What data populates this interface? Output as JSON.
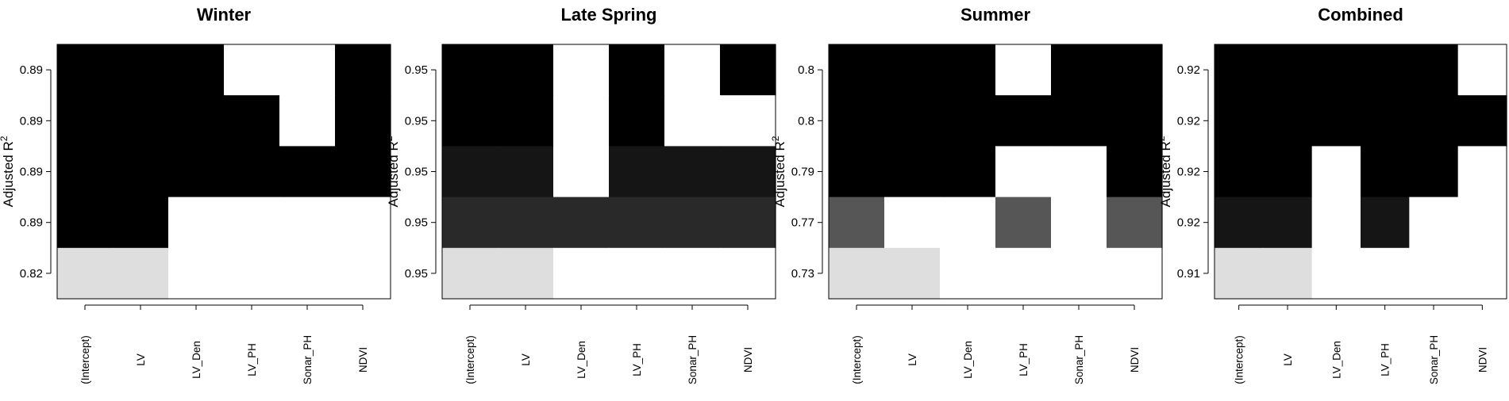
{
  "chart_data": [
    {
      "type": "heatmap",
      "title": "Winter",
      "ylabel": "Adjusted R",
      "ylabel_superscript": "2",
      "variables": [
        "(Intercept)",
        "LV",
        "LV_Den",
        "LV_PH",
        "Sonar_PH",
        "NDVI"
      ],
      "rows": [
        {
          "label": "0.89",
          "fills": [
            "#000000",
            "#000000",
            "#000000",
            "#ffffff",
            "#ffffff",
            "#000000"
          ]
        },
        {
          "label": "0.89",
          "fills": [
            "#000000",
            "#000000",
            "#000000",
            "#000000",
            "#ffffff",
            "#000000"
          ]
        },
        {
          "label": "0.89",
          "fills": [
            "#000000",
            "#000000",
            "#000000",
            "#000000",
            "#000000",
            "#000000"
          ]
        },
        {
          "label": "0.89",
          "fills": [
            "#000000",
            "#000000",
            "#ffffff",
            "#ffffff",
            "#ffffff",
            "#ffffff"
          ]
        },
        {
          "label": "0.82",
          "fills": [
            "#dedede",
            "#dedede",
            "#ffffff",
            "#ffffff",
            "#ffffff",
            "#ffffff"
          ]
        }
      ]
    },
    {
      "type": "heatmap",
      "title": "Late Spring",
      "ylabel": "Adjusted R",
      "ylabel_superscript": "2",
      "variables": [
        "(Intercept)",
        "LV",
        "LV_Den",
        "LV_PH",
        "Sonar_PH",
        "NDVI"
      ],
      "rows": [
        {
          "label": "0.95",
          "fills": [
            "#000000",
            "#000000",
            "#ffffff",
            "#000000",
            "#ffffff",
            "#000000"
          ]
        },
        {
          "label": "0.95",
          "fills": [
            "#000000",
            "#000000",
            "#ffffff",
            "#000000",
            "#ffffff",
            "#ffffff"
          ]
        },
        {
          "label": "0.95",
          "fills": [
            "#151515",
            "#151515",
            "#ffffff",
            "#151515",
            "#151515",
            "#151515"
          ]
        },
        {
          "label": "0.95",
          "fills": [
            "#292929",
            "#292929",
            "#292929",
            "#292929",
            "#292929",
            "#292929"
          ]
        },
        {
          "label": "0.95",
          "fills": [
            "#dedede",
            "#dedede",
            "#ffffff",
            "#ffffff",
            "#ffffff",
            "#ffffff"
          ]
        }
      ]
    },
    {
      "type": "heatmap",
      "title": "Summer",
      "ylabel": "Adjusted R",
      "ylabel_superscript": "2",
      "variables": [
        "(Intercept)",
        "LV",
        "LV_Den",
        "LV_PH",
        "Sonar_PH",
        "NDVI"
      ],
      "rows": [
        {
          "label": "0.8",
          "fills": [
            "#000000",
            "#000000",
            "#000000",
            "#ffffff",
            "#000000",
            "#000000"
          ]
        },
        {
          "label": "0.8",
          "fills": [
            "#000000",
            "#000000",
            "#000000",
            "#000000",
            "#000000",
            "#000000"
          ]
        },
        {
          "label": "0.79",
          "fills": [
            "#000000",
            "#000000",
            "#000000",
            "#ffffff",
            "#ffffff",
            "#000000"
          ]
        },
        {
          "label": "0.77",
          "fills": [
            "#565656",
            "#ffffff",
            "#ffffff",
            "#565656",
            "#ffffff",
            "#565656"
          ]
        },
        {
          "label": "0.73",
          "fills": [
            "#dedede",
            "#dedede",
            "#ffffff",
            "#ffffff",
            "#ffffff",
            "#ffffff"
          ]
        }
      ]
    },
    {
      "type": "heatmap",
      "title": "Combined",
      "ylabel": "Adjusted R",
      "ylabel_superscript": "2",
      "variables": [
        "(Intercept)",
        "LV",
        "LV_Den",
        "LV_PH",
        "Sonar_PH",
        "NDVI"
      ],
      "rows": [
        {
          "label": "0.92",
          "fills": [
            "#000000",
            "#000000",
            "#000000",
            "#000000",
            "#000000",
            "#ffffff"
          ]
        },
        {
          "label": "0.92",
          "fills": [
            "#000000",
            "#000000",
            "#000000",
            "#000000",
            "#000000",
            "#000000"
          ]
        },
        {
          "label": "0.92",
          "fills": [
            "#000000",
            "#000000",
            "#ffffff",
            "#000000",
            "#000000",
            "#ffffff"
          ]
        },
        {
          "label": "0.92",
          "fills": [
            "#151515",
            "#151515",
            "#ffffff",
            "#151515",
            "#ffffff",
            "#ffffff"
          ]
        },
        {
          "label": "0.91",
          "fills": [
            "#dedede",
            "#dedede",
            "#ffffff",
            "#ffffff",
            "#ffffff",
            "#ffffff"
          ]
        }
      ]
    }
  ]
}
